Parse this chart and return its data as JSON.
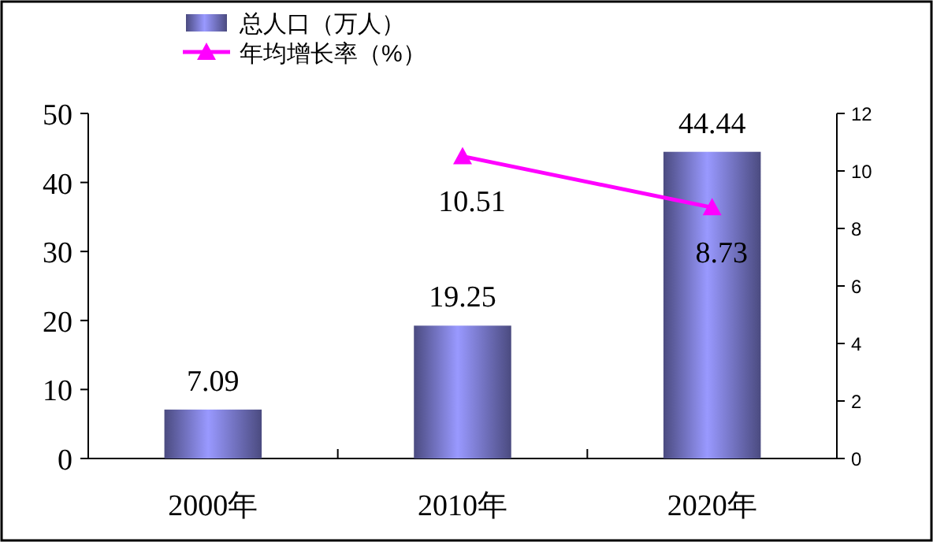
{
  "chart_data": {
    "type": "bar",
    "categories": [
      "2000年",
      "2010年",
      "2020年"
    ],
    "series": [
      {
        "name": "总人口（万人）",
        "color": "#9999ff",
        "values": [
          7.09,
          19.25,
          44.44
        ]
      },
      {
        "name": "年均增长率（%）",
        "type": "line",
        "axis": "y2",
        "color": "#ff00ff",
        "values": [
          null,
          10.51,
          8.73
        ]
      }
    ],
    "ylim": [
      0,
      50
    ],
    "yticks": [
      0,
      10,
      20,
      30,
      40,
      50
    ],
    "y2lim": [
      0,
      12
    ],
    "y2ticks": [
      0,
      2,
      4,
      6,
      8,
      10,
      12
    ],
    "data_labels": true,
    "legend": "top left",
    "marker": "triangle"
  }
}
